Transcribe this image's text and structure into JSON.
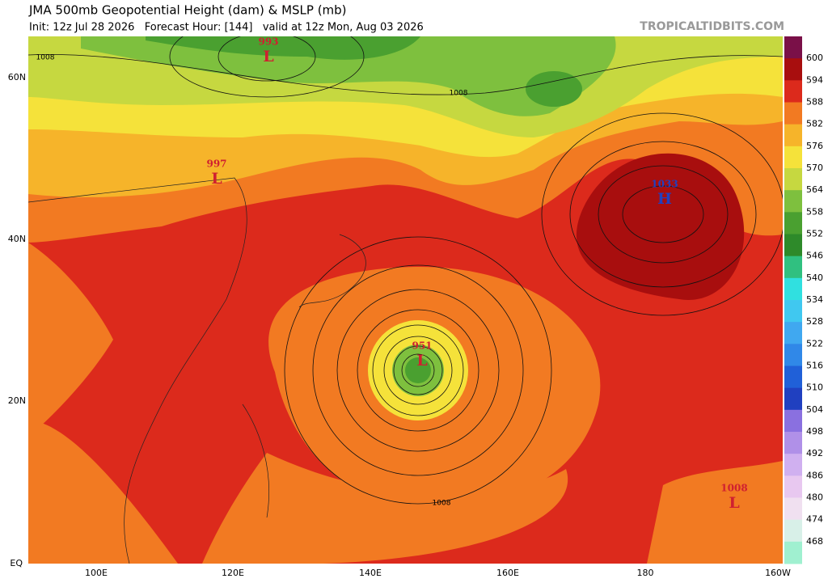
{
  "header": {
    "title": "JMA 500mb Geopotential Height (dam) & MSLP (mb)",
    "subtitle": "Init: 12z Jul 28 2026   Forecast Hour: [144]   valid at 12z Mon, Aug 03 2026",
    "site": "TROPICALTIDBITS.COM"
  },
  "map": {
    "centers": [
      {
        "value": "993",
        "letter": "L"
      },
      {
        "value": "997",
        "letter": "L"
      },
      {
        "value": "1033",
        "letter": "H"
      },
      {
        "value": "951",
        "letter": "L"
      },
      {
        "value": "1008",
        "letter": "L"
      }
    ],
    "contour_labels": [
      "1008",
      "1008",
      "1008"
    ]
  },
  "axes": {
    "lat_labels": [
      "60N",
      "40N",
      "20N",
      "EQ"
    ],
    "lon_labels": [
      "100E",
      "120E",
      "140E",
      "160E",
      "180",
      "160W"
    ]
  },
  "colorbar": {
    "labels": [
      "600",
      "594",
      "588",
      "582",
      "576",
      "570",
      "564",
      "558",
      "552",
      "546",
      "540",
      "534",
      "528",
      "522",
      "516",
      "510",
      "504",
      "498",
      "492",
      "486",
      "480",
      "474",
      "468"
    ]
  }
}
